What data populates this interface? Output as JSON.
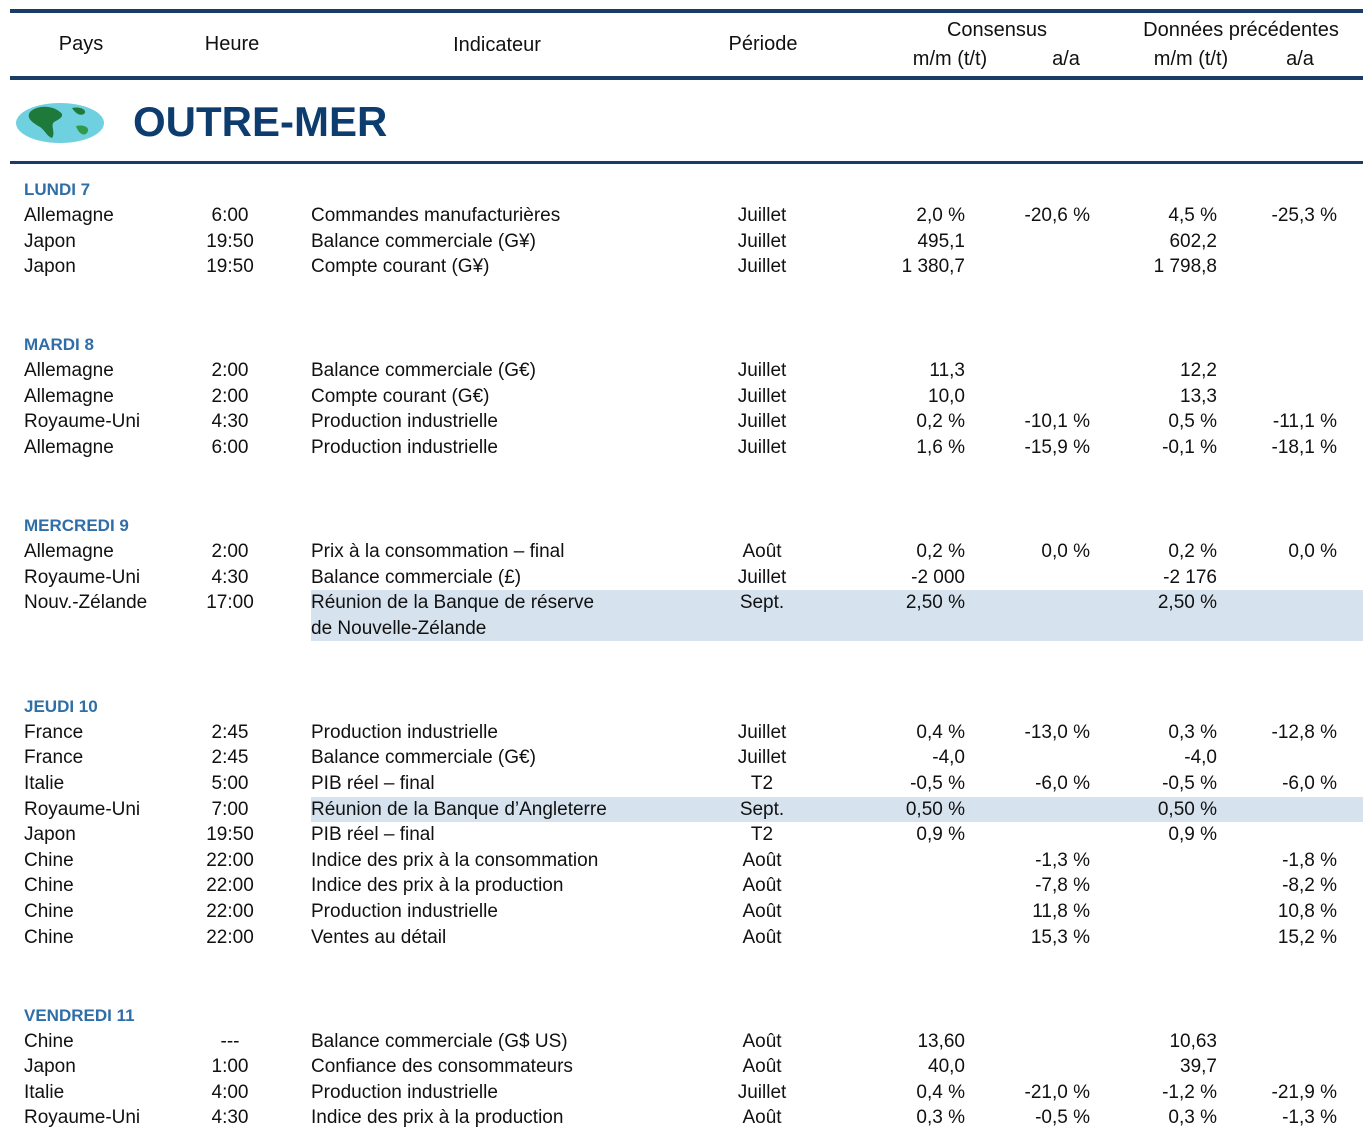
{
  "header": {
    "columns": [
      "Pays",
      "Heure",
      "Indicateur",
      "Période"
    ],
    "consensus": {
      "title": "Consensus",
      "mm": "m/m (t/t)",
      "aa": "a/a"
    },
    "previous": {
      "title": "Données précédentes",
      "mm": "m/m (t/t)",
      "aa": "a/a"
    }
  },
  "section": {
    "title": "OUTRE-MER"
  },
  "days": [
    {
      "label": "LUNDI 7",
      "rows": [
        {
          "country": "Allemagne",
          "time": "6:00",
          "indicator": "Commandes manufacturières",
          "period": "Juillet",
          "cons_mm": "2,0 %",
          "cons_aa": "-20,6 %",
          "prev_mm": "4,5 %",
          "prev_aa": "-25,3 %"
        },
        {
          "country": "Japon",
          "time": "19:50",
          "indicator": "Balance commerciale (G¥)",
          "period": "Juillet",
          "cons_mm": "495,1",
          "prev_mm": "602,2"
        },
        {
          "country": "Japon",
          "time": "19:50",
          "indicator": "Compte courant (G¥)",
          "period": "Juillet",
          "cons_mm": "1 380,7",
          "prev_mm": "1 798,8"
        }
      ]
    },
    {
      "label": "MARDI 8",
      "rows": [
        {
          "country": "Allemagne",
          "time": "2:00",
          "indicator": "Balance commerciale (G€)",
          "period": "Juillet",
          "cons_mm": "11,3",
          "prev_mm": "12,2"
        },
        {
          "country": "Allemagne",
          "time": "2:00",
          "indicator": "Compte courant (G€)",
          "period": "Juillet",
          "cons_mm": "10,0",
          "prev_mm": "13,3"
        },
        {
          "country": "Royaume-Uni",
          "time": "4:30",
          "indicator": "Production industrielle",
          "period": "Juillet",
          "cons_mm": "0,2 %",
          "cons_aa": "-10,1 %",
          "prev_mm": "0,5 %",
          "prev_aa": "-11,1 %"
        },
        {
          "country": "Allemagne",
          "time": "6:00",
          "indicator": "Production industrielle",
          "period": "Juillet",
          "cons_mm": "1,6 %",
          "cons_aa": "-15,9 %",
          "prev_mm": "-0,1 %",
          "prev_aa": "-18,1 %"
        }
      ]
    },
    {
      "label": "MERCREDI 9",
      "rows": [
        {
          "country": "Allemagne",
          "time": "2:00",
          "indicator": "Prix à la consommation – final",
          "period": "Août",
          "cons_mm": "0,2 %",
          "cons_aa": "0,0 %",
          "prev_mm": "0,2 %",
          "prev_aa": "0,0 %"
        },
        {
          "country": "Royaume-Uni",
          "time": "4:30",
          "indicator": "Balance commerciale (£)",
          "period": "Juillet",
          "cons_mm": "-2 000",
          "prev_mm": "-2 176"
        },
        {
          "country": "Nouv.-Zélande",
          "time": "17:00",
          "indicator": "Réunion de la Banque de réserve\nde Nouvelle-Zélande",
          "period": "Sept.",
          "cons_mm": "2,50 %",
          "prev_mm": "2,50 %",
          "highlight": true
        }
      ]
    },
    {
      "label": "JEUDI 10",
      "rows": [
        {
          "country": "France",
          "time": "2:45",
          "indicator": "Production industrielle",
          "period": "Juillet",
          "cons_mm": "0,4 %",
          "cons_aa": "-13,0 %",
          "prev_mm": "0,3 %",
          "prev_aa": "-12,8 %"
        },
        {
          "country": "France",
          "time": "2:45",
          "indicator": "Balance commerciale (G€)",
          "period": "Juillet",
          "cons_mm": "-4,0",
          "prev_mm": "-4,0"
        },
        {
          "country": "Italie",
          "time": "5:00",
          "indicator": "PIB réel – final",
          "period": "T2",
          "cons_mm": "-0,5 %",
          "cons_aa": "-6,0 %",
          "prev_mm": "-0,5 %",
          "prev_aa": "-6,0 %"
        },
        {
          "country": "Royaume-Uni",
          "time": "7:00",
          "indicator": "Réunion de la Banque d’Angleterre",
          "period": "Sept.",
          "cons_mm": "0,50 %",
          "prev_mm": "0,50 %",
          "highlight": true
        },
        {
          "country": "Japon",
          "time": "19:50",
          "indicator": "PIB réel – final",
          "period": "T2",
          "cons_mm": "0,9 %",
          "prev_mm": "0,9 %"
        },
        {
          "country": "Chine",
          "time": "22:00",
          "indicator": "Indice des prix à la consommation",
          "period": "Août",
          "cons_aa": "-1,3 %",
          "prev_aa": "-1,8 %"
        },
        {
          "country": "Chine",
          "time": "22:00",
          "indicator": "Indice des prix à la production",
          "period": "Août",
          "cons_aa": "-7,8 %",
          "prev_aa": "-8,2 %"
        },
        {
          "country": "Chine",
          "time": "22:00",
          "indicator": "Production industrielle",
          "period": "Août",
          "cons_aa": "11,8 %",
          "prev_aa": "10,8 %"
        },
        {
          "country": "Chine",
          "time": "22:00",
          "indicator": "Ventes au détail",
          "period": "Août",
          "cons_aa": "15,3 %",
          "prev_aa": "15,2 %"
        }
      ]
    },
    {
      "label": "VENDREDI 11",
      "rows": [
        {
          "country": "Chine",
          "time": "---",
          "indicator": "Balance commerciale (G$ US)",
          "period": "Août",
          "cons_mm": "13,60",
          "prev_mm": "10,63"
        },
        {
          "country": "Japon",
          "time": "1:00",
          "indicator": "Confiance des consommateurs",
          "period": "Août",
          "cons_mm": "40,0",
          "prev_mm": "39,7"
        },
        {
          "country": "Italie",
          "time": "4:00",
          "indicator": "Production industrielle",
          "period": "Juillet",
          "cons_mm": "0,4 %",
          "cons_aa": "-21,0 %",
          "prev_mm": "-1,2 %",
          "prev_aa": "-21,9 %"
        },
        {
          "country": "Royaume-Uni",
          "time": "4:30",
          "indicator": "Indice des prix à la production",
          "period": "Août",
          "cons_mm": "0,3 %",
          "cons_aa": "-0,5 %",
          "prev_mm": "0,3 %",
          "prev_aa": "-1,3 %"
        }
      ]
    }
  ]
}
